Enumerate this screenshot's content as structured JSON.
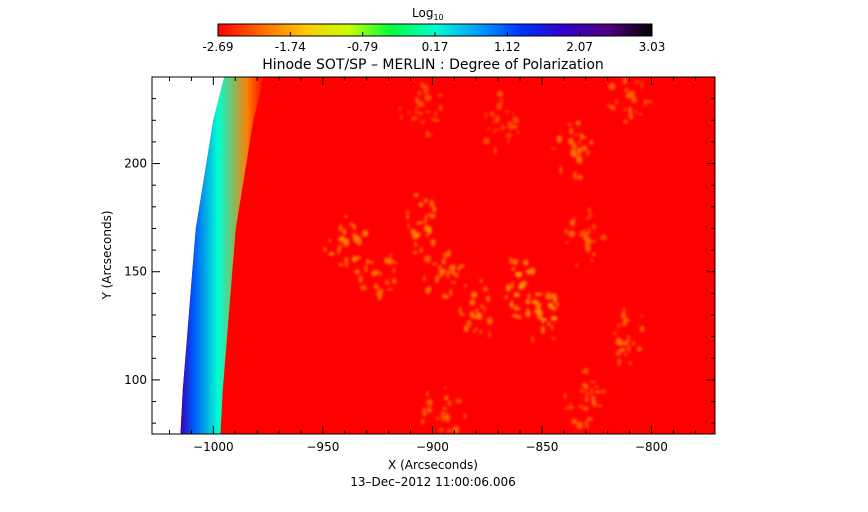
{
  "colorbar": {
    "label": "Log",
    "label_sub": "10",
    "ticks": [
      "-2.69",
      "-1.74",
      "-0.79",
      "0.17",
      "1.12",
      "2.07",
      "3.03"
    ],
    "min": -2.69,
    "max": 3.03,
    "colormap": [
      "#ff0000",
      "#ff6a00",
      "#ffc800",
      "#c8ff00",
      "#00ff40",
      "#00ffd0",
      "#00a0ff",
      "#0030ff",
      "#3000c8",
      "#500080",
      "#000000"
    ]
  },
  "chart_data": {
    "type": "heatmap",
    "title": "Hinode SOT/SP – MERLIN : Degree of Polarization",
    "xlabel": "X (Arcseconds)",
    "ylabel": "Y (Arcseconds)",
    "xlim": [
      -1028,
      -771
    ],
    "ylim": [
      75,
      240
    ],
    "x_ticks": [
      -1000,
      -950,
      -900,
      -850,
      -800
    ],
    "x_tick_labels": [
      "−1000",
      "−950",
      "−900",
      "−850",
      "−800"
    ],
    "y_ticks": [
      100,
      150,
      200
    ],
    "y_tick_labels": [
      "100",
      "150",
      "200"
    ],
    "background_value": -2.69,
    "limb": {
      "points": [
        [
          -995,
          240
        ],
        [
          -1000,
          220
        ],
        [
          -1004,
          195
        ],
        [
          -1008,
          170
        ],
        [
          -1010,
          145
        ],
        [
          -1012,
          120
        ],
        [
          -1014,
          95
        ],
        [
          -1015,
          75
        ]
      ],
      "band_values": [
        -2.0,
        0.17,
        1.12,
        2.07
      ]
    },
    "bright_patches": [
      {
        "x": -940,
        "y": 165,
        "value": -1.9
      },
      {
        "x": -925,
        "y": 150,
        "value": -2.0
      },
      {
        "x": -905,
        "y": 172,
        "value": -1.9
      },
      {
        "x": -895,
        "y": 150,
        "value": -2.0
      },
      {
        "x": -880,
        "y": 132,
        "value": -2.0
      },
      {
        "x": -860,
        "y": 143,
        "value": -1.8
      },
      {
        "x": -850,
        "y": 128,
        "value": -1.9
      },
      {
        "x": -835,
        "y": 205,
        "value": -2.0
      },
      {
        "x": -830,
        "y": 165,
        "value": -2.1
      },
      {
        "x": -810,
        "y": 120,
        "value": -2.1
      },
      {
        "x": -895,
        "y": 85,
        "value": -2.1
      },
      {
        "x": -830,
        "y": 90,
        "value": -2.1
      },
      {
        "x": -905,
        "y": 225,
        "value": -2.2
      },
      {
        "x": -870,
        "y": 220,
        "value": -2.2
      },
      {
        "x": -810,
        "y": 232,
        "value": -2.1
      }
    ],
    "timestamp": "13–Dec–2012 11:00:06.006"
  }
}
